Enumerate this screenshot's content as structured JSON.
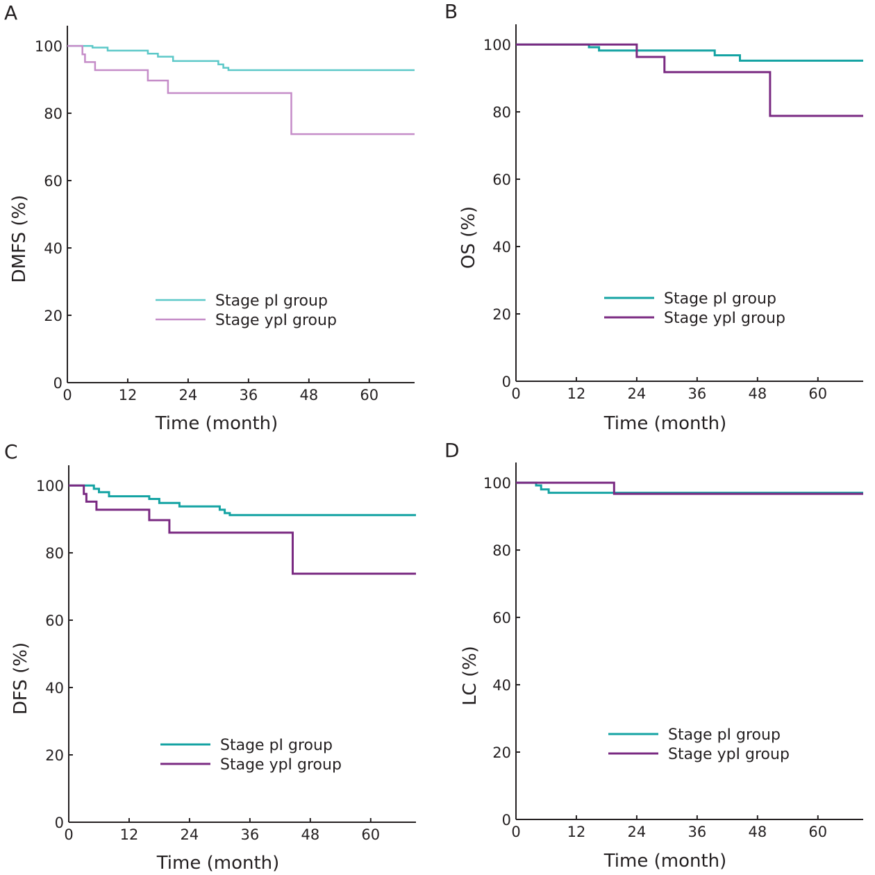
{
  "chart_data": [
    {
      "panel": "A",
      "type": "line",
      "step": true,
      "xlabel": "Time (month)",
      "ylabel": "DMFS (%)",
      "xlim": [
        0,
        69
      ],
      "ylim": [
        0,
        106
      ],
      "xticks": [
        0,
        12,
        24,
        36,
        48,
        60
      ],
      "yticks": [
        0,
        20,
        40,
        60,
        80,
        100
      ],
      "legend_position": "center",
      "series": [
        {
          "name": "Stage pI group",
          "color": "#5cc8c8",
          "stroke": 2.5,
          "x": [
            0,
            5,
            8,
            16,
            18,
            21,
            30,
            31,
            32,
            69
          ],
          "y": [
            100,
            99.5,
            98.6,
            97.7,
            96.8,
            95.5,
            94.5,
            93.5,
            92.8,
            92.8
          ]
        },
        {
          "name": "Stage ypI group",
          "color": "#c58cc8",
          "stroke": 2.5,
          "x": [
            0,
            3,
            3.5,
            5.5,
            16,
            20,
            44.5,
            69
          ],
          "y": [
            100,
            97.5,
            95.2,
            92.8,
            89.7,
            86,
            73.8,
            73.8
          ]
        }
      ]
    },
    {
      "panel": "B",
      "type": "line",
      "step": true,
      "xlabel": "Time (month)",
      "ylabel": "OS (%)",
      "xlim": [
        0,
        69
      ],
      "ylim": [
        0,
        106
      ],
      "xticks": [
        0,
        12,
        24,
        36,
        48,
        60
      ],
      "yticks": [
        0,
        20,
        40,
        60,
        80,
        100
      ],
      "legend_position": "center",
      "series": [
        {
          "name": "Stage pI group",
          "color": "#14a3a3",
          "stroke": 3,
          "x": [
            0,
            14.5,
            16.5,
            39.5,
            44.5,
            69
          ],
          "y": [
            100,
            99.2,
            98.2,
            96.8,
            95.2,
            95.2
          ]
        },
        {
          "name": "Stage ypI group",
          "color": "#7a2a82",
          "stroke": 3,
          "x": [
            0,
            24,
            29.5,
            50.5,
            69
          ],
          "y": [
            100,
            96.3,
            91.8,
            78.8,
            78.8
          ]
        }
      ]
    },
    {
      "panel": "C",
      "type": "line",
      "step": true,
      "xlabel": "Time (month)",
      "ylabel": "DFS (%)",
      "xlim": [
        0,
        69
      ],
      "ylim": [
        0,
        106
      ],
      "xticks": [
        0,
        12,
        24,
        36,
        48,
        60
      ],
      "yticks": [
        0,
        20,
        40,
        60,
        80,
        100
      ],
      "legend_position": "center",
      "series": [
        {
          "name": "Stage pI group",
          "color": "#14a3a3",
          "stroke": 3,
          "x": [
            0,
            5,
            6,
            8,
            16,
            18,
            22,
            30,
            31,
            32,
            69
          ],
          "y": [
            100,
            99,
            98,
            96.8,
            96,
            94.8,
            93.8,
            92.8,
            91.8,
            91.2,
            91.2
          ]
        },
        {
          "name": "Stage ypI group",
          "color": "#7a2a82",
          "stroke": 3,
          "x": [
            0,
            3,
            3.5,
            5.5,
            16,
            20,
            44.5,
            69
          ],
          "y": [
            100,
            97.5,
            95.2,
            92.8,
            89.7,
            86,
            73.8,
            73.8
          ]
        }
      ]
    },
    {
      "panel": "D",
      "type": "line",
      "step": true,
      "xlabel": "Time (month)",
      "ylabel": "LC (%)",
      "xlim": [
        0,
        69
      ],
      "ylim": [
        0,
        106
      ],
      "xticks": [
        0,
        12,
        24,
        36,
        48,
        60
      ],
      "yticks": [
        0,
        20,
        40,
        60,
        80,
        100
      ],
      "legend_position": "center",
      "series": [
        {
          "name": "Stage pI group",
          "color": "#14a3a3",
          "stroke": 3,
          "x": [
            0,
            4,
            5,
            6.5,
            69
          ],
          "y": [
            100,
            99.2,
            98,
            97,
            97
          ]
        },
        {
          "name": "Stage ypI group",
          "color": "#7a2a82",
          "stroke": 3,
          "x": [
            0,
            19.5,
            69
          ],
          "y": [
            100,
            96.7,
            96.7
          ]
        }
      ]
    }
  ]
}
